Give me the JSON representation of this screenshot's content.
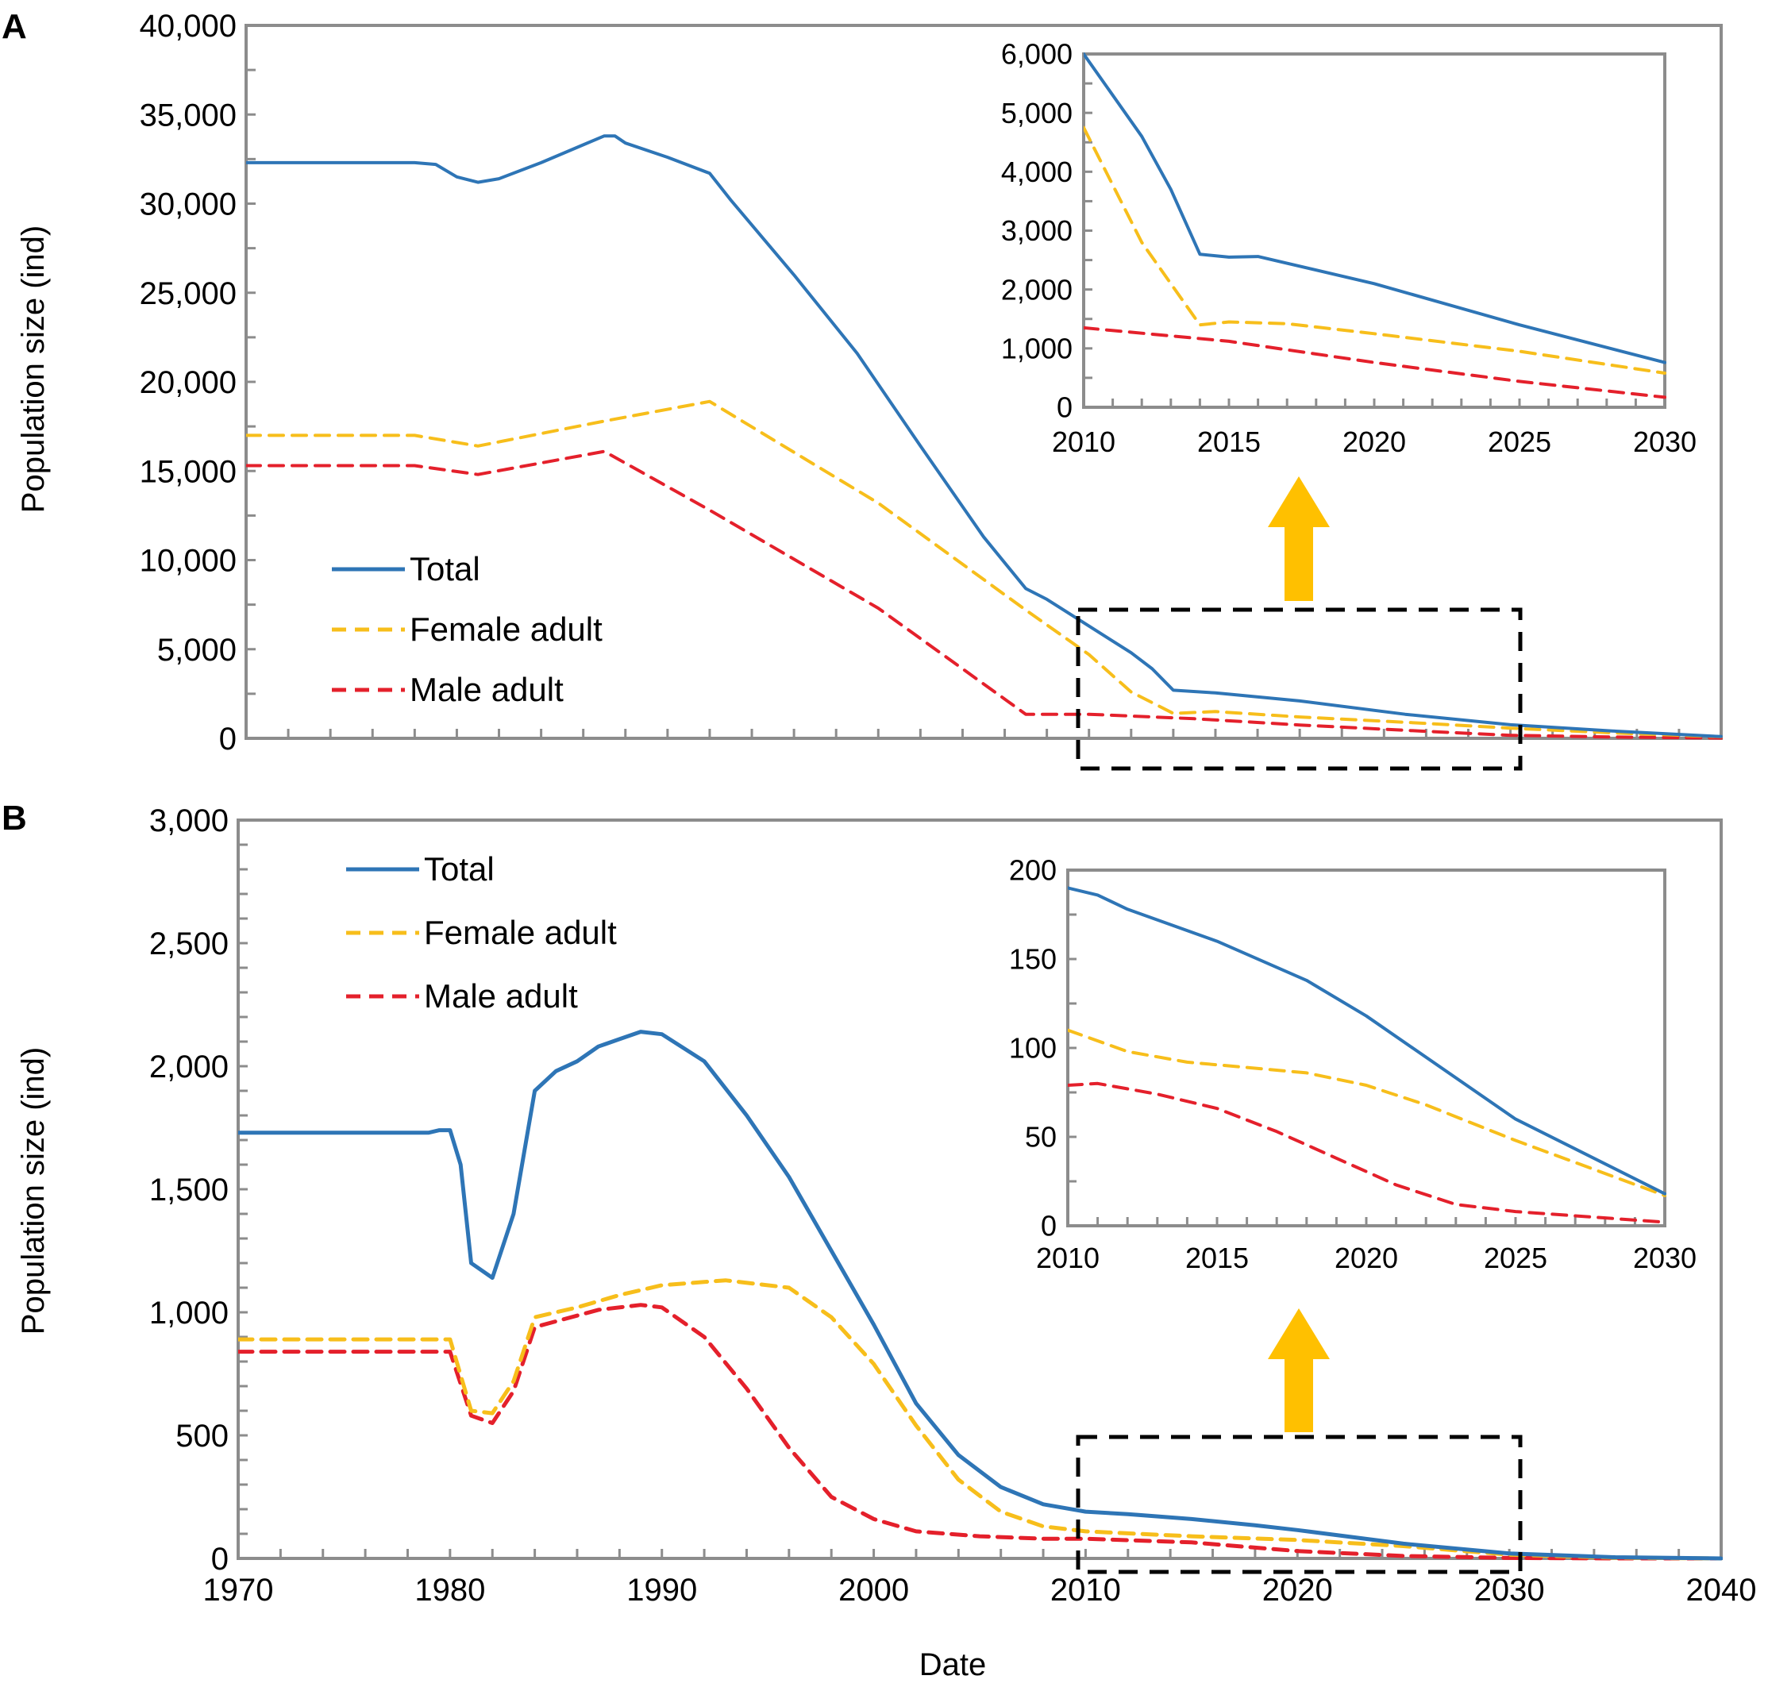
{
  "colors": {
    "total": "#2E75B6",
    "female": "#F7BE1B",
    "male": "#E4202B",
    "frame": "#8C8C8C",
    "arrow": "#FFC000",
    "box": "#000000"
  },
  "xlabel": "Date",
  "chart_data": [
    {
      "id": "A",
      "panel_label": "A",
      "type": "line",
      "ylabel": "Population size (ind)",
      "xlim": [
        1970,
        2040
      ],
      "ylim": [
        0,
        40000
      ],
      "yticks": [
        0,
        5000,
        10000,
        15000,
        20000,
        25000,
        30000,
        35000,
        40000
      ],
      "ytick_labels": [
        "0",
        "5,000",
        "10,000",
        "15,000",
        "20,000",
        "25,000",
        "30,000",
        "35,000",
        "40,000"
      ],
      "xtick_labels": [],
      "grid": false,
      "legend_position": "center-left",
      "series": [
        {
          "name": "Total",
          "key": "total",
          "dashed": false,
          "points": [
            [
              1970,
              32300
            ],
            [
              1978,
              32300
            ],
            [
              1979,
              32200
            ],
            [
              1980,
              31500
            ],
            [
              1981,
              31200
            ],
            [
              1982,
              31400
            ],
            [
              1984,
              32300
            ],
            [
              1986,
              33300
            ],
            [
              1987,
              33800
            ],
            [
              1987.5,
              33800
            ],
            [
              1988,
              33400
            ],
            [
              1990,
              32600
            ],
            [
              1992,
              31700
            ],
            [
              1993,
              30200
            ],
            [
              1996,
              26000
            ],
            [
              1999,
              21600
            ],
            [
              2002,
              16400
            ],
            [
              2005,
              11300
            ],
            [
              2007,
              8400
            ],
            [
              2008,
              7800
            ],
            [
              2010,
              6300
            ],
            [
              2012,
              4800
            ],
            [
              2013,
              3900
            ],
            [
              2014,
              2700
            ],
            [
              2016,
              2550
            ],
            [
              2020,
              2100
            ],
            [
              2025,
              1350
            ],
            [
              2030,
              760
            ],
            [
              2035,
              400
            ],
            [
              2040,
              100
            ]
          ]
        },
        {
          "name": "Female adult",
          "key": "female",
          "dashed": true,
          "points": [
            [
              1970,
              17000
            ],
            [
              1978,
              17000
            ],
            [
              1981,
              16400
            ],
            [
              1987,
              17800
            ],
            [
              1992,
              18900
            ],
            [
              2000,
              13200
            ],
            [
              2007,
              7200
            ],
            [
              2010,
              4700
            ],
            [
              2012,
              2600
            ],
            [
              2014,
              1400
            ],
            [
              2016,
              1500
            ],
            [
              2020,
              1200
            ],
            [
              2025,
              900
            ],
            [
              2030,
              570
            ],
            [
              2035,
              300
            ],
            [
              2040,
              90
            ]
          ]
        },
        {
          "name": "Male adult",
          "key": "male",
          "dashed": true,
          "points": [
            [
              1970,
              15300
            ],
            [
              1978,
              15300
            ],
            [
              1981,
              14800
            ],
            [
              1987,
              16100
            ],
            [
              1992,
              12800
            ],
            [
              2000,
              7300
            ],
            [
              2007,
              1350
            ],
            [
              2010,
              1350
            ],
            [
              2015,
              1100
            ],
            [
              2020,
              750
            ],
            [
              2025,
              450
            ],
            [
              2030,
              170
            ],
            [
              2035,
              70
            ],
            [
              2040,
              20
            ]
          ]
        }
      ]
    },
    {
      "id": "A-inset",
      "type": "line",
      "xlim": [
        2010,
        2030
      ],
      "ylim": [
        0,
        6000
      ],
      "yticks": [
        0,
        1000,
        2000,
        3000,
        4000,
        5000,
        6000
      ],
      "ytick_labels": [
        "0",
        "1,000",
        "2,000",
        "3,000",
        "4,000",
        "5,000",
        "6,000"
      ],
      "xticks": [
        2010,
        2015,
        2020,
        2025,
        2030
      ],
      "xtick_labels": [
        "2010",
        "2015",
        "2020",
        "2025",
        "2030"
      ],
      "grid": false,
      "series": [
        {
          "key": "total",
          "dashed": false,
          "points": [
            [
              2010,
              6000
            ],
            [
              2012,
              4600
            ],
            [
              2013,
              3700
            ],
            [
              2014,
              2600
            ],
            [
              2015,
              2550
            ],
            [
              2016,
              2560
            ],
            [
              2020,
              2100
            ],
            [
              2025,
              1400
            ],
            [
              2030,
              760
            ]
          ]
        },
        {
          "key": "female",
          "dashed": true,
          "points": [
            [
              2010,
              4750
            ],
            [
              2012,
              2800
            ],
            [
              2014,
              1400
            ],
            [
              2015,
              1450
            ],
            [
              2017,
              1420
            ],
            [
              2020,
              1250
            ],
            [
              2025,
              950
            ],
            [
              2030,
              580
            ]
          ]
        },
        {
          "key": "male",
          "dashed": true,
          "points": [
            [
              2010,
              1350
            ],
            [
              2015,
              1120
            ],
            [
              2020,
              760
            ],
            [
              2025,
              440
            ],
            [
              2030,
              170
            ]
          ]
        }
      ]
    },
    {
      "id": "B",
      "panel_label": "B",
      "type": "line",
      "ylabel": "Population size (ind)",
      "xlim": [
        1970,
        2040
      ],
      "ylim": [
        0,
        3000
      ],
      "yticks": [
        0,
        500,
        1000,
        1500,
        2000,
        2500,
        3000
      ],
      "ytick_labels": [
        "0",
        "500",
        "1,000",
        "1,500",
        "2,000",
        "2,500",
        "3,000"
      ],
      "xticks": [
        1970,
        1980,
        1990,
        2000,
        2010,
        2020,
        2030,
        2040
      ],
      "xtick_labels": [
        "1970",
        "1980",
        "1990",
        "2000",
        "2010",
        "2020",
        "2030",
        "2040"
      ],
      "grid": false,
      "legend_position": "top-left",
      "series": [
        {
          "name": "Total",
          "key": "total",
          "dashed": false,
          "points": [
            [
              1970,
              1730
            ],
            [
              1979,
              1730
            ],
            [
              1979.5,
              1740
            ],
            [
              1980,
              1740
            ],
            [
              1980.5,
              1600
            ],
            [
              1981,
              1200
            ],
            [
              1982,
              1140
            ],
            [
              1983,
              1400
            ],
            [
              1984,
              1900
            ],
            [
              1985,
              1980
            ],
            [
              1986,
              2020
            ],
            [
              1987,
              2080
            ],
            [
              1988,
              2110
            ],
            [
              1989,
              2140
            ],
            [
              1990,
              2130
            ],
            [
              1992,
              2020
            ],
            [
              1994,
              1800
            ],
            [
              1996,
              1550
            ],
            [
              1998,
              1250
            ],
            [
              2000,
              950
            ],
            [
              2002,
              630
            ],
            [
              2004,
              420
            ],
            [
              2006,
              290
            ],
            [
              2008,
              220
            ],
            [
              2010,
              190
            ],
            [
              2012,
              180
            ],
            [
              2015,
              160
            ],
            [
              2018,
              135
            ],
            [
              2020,
              115
            ],
            [
              2025,
              60
            ],
            [
              2030,
              20
            ],
            [
              2035,
              5
            ],
            [
              2040,
              0
            ]
          ]
        },
        {
          "name": "Female adult",
          "key": "female",
          "dashed": true,
          "points": [
            [
              1970,
              890
            ],
            [
              1980,
              890
            ],
            [
              1981,
              600
            ],
            [
              1982,
              590
            ],
            [
              1983,
              720
            ],
            [
              1984,
              980
            ],
            [
              1986,
              1020
            ],
            [
              1988,
              1070
            ],
            [
              1990,
              1110
            ],
            [
              1993,
              1130
            ],
            [
              1996,
              1100
            ],
            [
              1998,
              980
            ],
            [
              2000,
              790
            ],
            [
              2002,
              540
            ],
            [
              2004,
              320
            ],
            [
              2006,
              190
            ],
            [
              2008,
              130
            ],
            [
              2010,
              110
            ],
            [
              2015,
              90
            ],
            [
              2020,
              75
            ],
            [
              2025,
              50
            ],
            [
              2030,
              15
            ],
            [
              2035,
              3
            ],
            [
              2040,
              0
            ]
          ]
        },
        {
          "name": "Male adult",
          "key": "male",
          "dashed": true,
          "points": [
            [
              1970,
              840
            ],
            [
              1980,
              840
            ],
            [
              1981,
              580
            ],
            [
              1982,
              550
            ],
            [
              1983,
              680
            ],
            [
              1984,
              940
            ],
            [
              1987,
              1010
            ],
            [
              1989,
              1030
            ],
            [
              1990,
              1020
            ],
            [
              1992,
              900
            ],
            [
              1994,
              690
            ],
            [
              1996,
              450
            ],
            [
              1998,
              250
            ],
            [
              2000,
              160
            ],
            [
              2002,
              110
            ],
            [
              2005,
              90
            ],
            [
              2008,
              80
            ],
            [
              2010,
              80
            ],
            [
              2015,
              65
            ],
            [
              2020,
              30
            ],
            [
              2025,
              10
            ],
            [
              2030,
              2
            ],
            [
              2035,
              0
            ],
            [
              2040,
              0
            ]
          ]
        }
      ]
    },
    {
      "id": "B-inset",
      "type": "line",
      "xlim": [
        2010,
        2030
      ],
      "ylim": [
        0,
        200
      ],
      "yticks": [
        0,
        50,
        100,
        150,
        200
      ],
      "ytick_labels": [
        "0",
        "50",
        "100",
        "150",
        "200"
      ],
      "xticks": [
        2010,
        2015,
        2020,
        2025,
        2030
      ],
      "xtick_labels": [
        "2010",
        "2015",
        "2020",
        "2025",
        "2030"
      ],
      "grid": false,
      "series": [
        {
          "key": "total",
          "dashed": false,
          "points": [
            [
              2010,
              190
            ],
            [
              2011,
              186
            ],
            [
              2012,
              178
            ],
            [
              2015,
              160
            ],
            [
              2018,
              138
            ],
            [
              2020,
              118
            ],
            [
              2025,
              60
            ],
            [
              2030,
              18
            ]
          ]
        },
        {
          "key": "female",
          "dashed": true,
          "points": [
            [
              2010,
              110
            ],
            [
              2012,
              98
            ],
            [
              2014,
              92
            ],
            [
              2016,
              89
            ],
            [
              2018,
              86
            ],
            [
              2020,
              79
            ],
            [
              2022,
              68
            ],
            [
              2025,
              48
            ],
            [
              2030,
              17
            ]
          ]
        },
        {
          "key": "male",
          "dashed": true,
          "points": [
            [
              2010,
              79
            ],
            [
              2011,
              80
            ],
            [
              2013,
              74
            ],
            [
              2015,
              66
            ],
            [
              2017,
              53
            ],
            [
              2019,
              38
            ],
            [
              2021,
              23
            ],
            [
              2023,
              12
            ],
            [
              2025,
              8
            ],
            [
              2030,
              2
            ]
          ]
        }
      ]
    }
  ]
}
